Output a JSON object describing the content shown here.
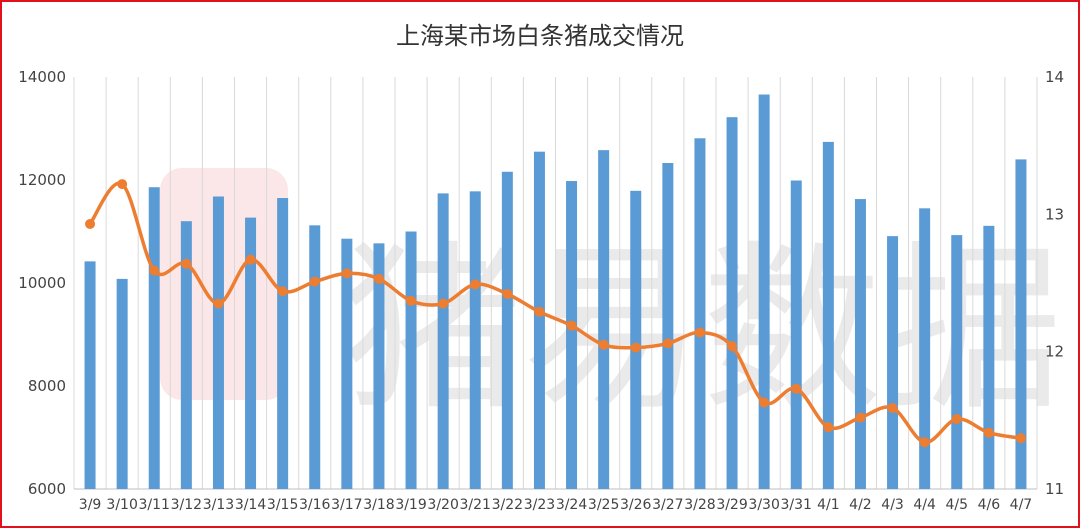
{
  "chart_data": {
    "type": "bar",
    "title": "上海某市场白条猪成交情况",
    "watermark": "猪易数据",
    "categories": [
      "3/9",
      "3/10",
      "3/11",
      "3/12",
      "3/13",
      "3/14",
      "3/15",
      "3/16",
      "3/17",
      "3/18",
      "3/19",
      "3/20",
      "3/21",
      "3/22",
      "3/23",
      "3/24",
      "3/25",
      "3/26",
      "3/27",
      "3/28",
      "3/29",
      "3/30",
      "3/31",
      "4/1",
      "4/2",
      "4/3",
      "4/4",
      "4/5",
      "4/6",
      "4/7"
    ],
    "series": [
      {
        "type": "bar",
        "axis": "left",
        "color": "#5b9bd5",
        "values": [
          10420,
          10080,
          11860,
          11200,
          11680,
          11270,
          11650,
          11120,
          10860,
          10770,
          11000,
          11740,
          11780,
          12160,
          12550,
          11980,
          12580,
          11790,
          12330,
          12810,
          13220,
          13660,
          11990,
          12740,
          11630,
          10910,
          11450,
          10930,
          11110,
          12400
        ]
      },
      {
        "type": "line",
        "axis": "right",
        "color": "#ed7d31",
        "values": [
          12.93,
          13.22,
          12.59,
          12.64,
          12.35,
          12.67,
          12.44,
          12.51,
          12.57,
          12.53,
          12.37,
          12.35,
          12.49,
          12.42,
          12.29,
          12.19,
          12.05,
          12.03,
          12.06,
          12.14,
          12.04,
          11.63,
          11.73,
          11.45,
          11.52,
          11.59,
          11.34,
          11.51,
          11.41,
          11.37
        ]
      }
    ],
    "y_left": {
      "min": 6000,
      "max": 14000,
      "ticks": [
        6000,
        8000,
        10000,
        12000,
        14000
      ]
    },
    "y_right": {
      "min": 11,
      "max": 14,
      "ticks": [
        11,
        12,
        13,
        14
      ]
    },
    "grid": "vertical",
    "legend": "none"
  }
}
